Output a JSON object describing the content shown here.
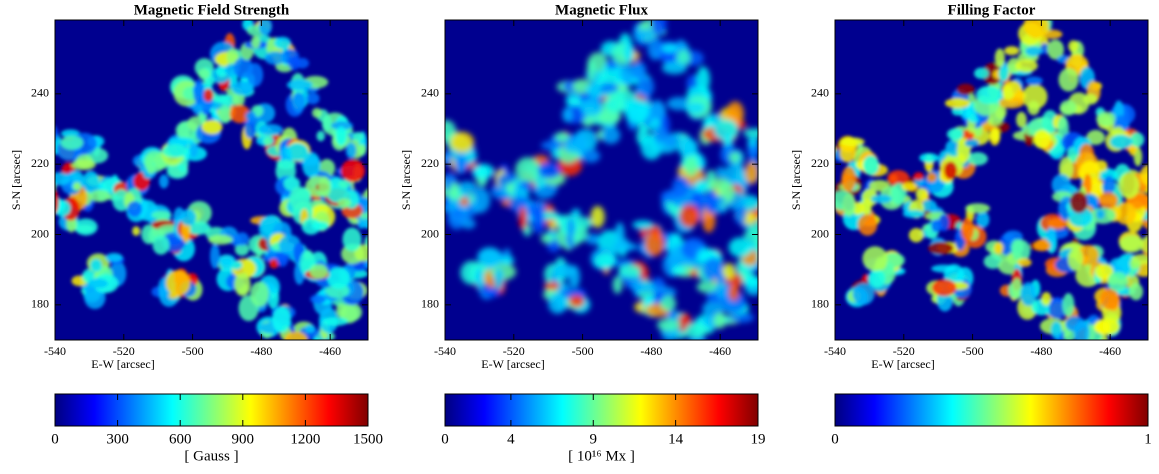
{
  "chart_data": [
    {
      "type": "image",
      "title": "Magnetic Field Strength",
      "xlabel": "E-W [arcsec]",
      "ylabel": "S-N [arcsec]",
      "xlim": [
        -540,
        -449
      ],
      "ylim": [
        170,
        261
      ],
      "xticks": [
        -540,
        -520,
        -500,
        -480,
        -460
      ],
      "yticks": [
        180,
        200,
        220,
        240
      ],
      "colorbar": {
        "colormap": "jet",
        "lim": [
          0,
          1500
        ],
        "ticks": [
          0,
          300,
          600,
          900,
          1200,
          1500
        ],
        "label": "[ Gauss ]"
      }
    },
    {
      "type": "image",
      "title": "Magnetic Flux",
      "xlabel": "E-W [arcsec]",
      "ylabel": "S-N [arcsec]",
      "xlim": [
        -540,
        -449
      ],
      "ylim": [
        170,
        261
      ],
      "xticks": [
        -540,
        -520,
        -500,
        -480,
        -460
      ],
      "yticks": [
        180,
        200,
        220,
        240
      ],
      "colorbar": {
        "colormap": "jet",
        "lim": [
          0,
          19
        ],
        "ticks": [
          0,
          4,
          9,
          14,
          19
        ],
        "label": "[ 10¹⁶ Mx ]"
      }
    },
    {
      "type": "image",
      "title": "Filling Factor",
      "xlabel": "E-W [arcsec]",
      "ylabel": "S-N [arcsec]",
      "xlim": [
        -540,
        -449
      ],
      "ylim": [
        170,
        261
      ],
      "xticks": [
        -540,
        -520,
        -500,
        -480,
        -460
      ],
      "yticks": [
        180,
        200,
        220,
        240
      ],
      "colorbar": {
        "colormap": "jet",
        "lim": [
          0,
          1
        ],
        "ticks": [
          0,
          1
        ]
      }
    }
  ]
}
